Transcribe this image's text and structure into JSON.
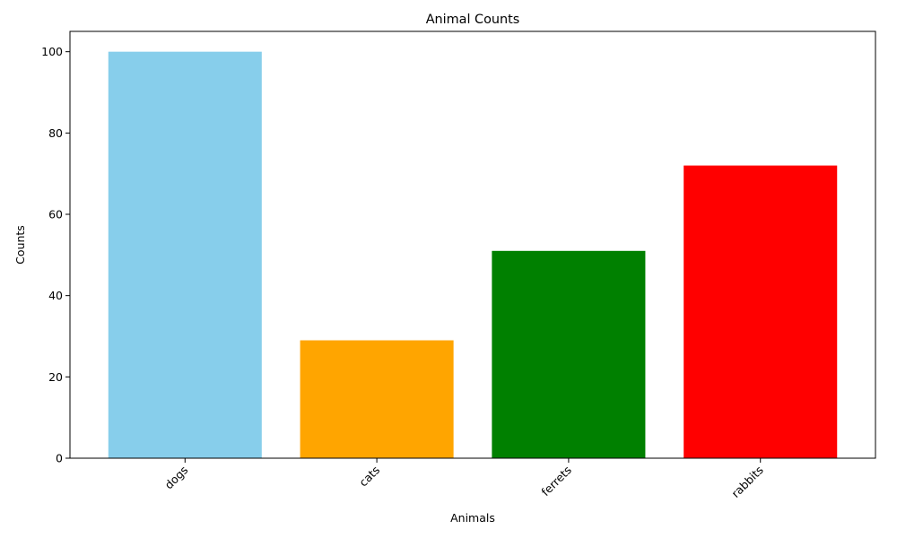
{
  "chart_data": {
    "type": "bar",
    "title": "Animal Counts",
    "xlabel": "Animals",
    "ylabel": "Counts",
    "categories": [
      "dogs",
      "cats",
      "ferrets",
      "rabbits"
    ],
    "values": [
      100,
      29,
      51,
      72
    ],
    "colors": [
      "#87ceeb",
      "#ffa500",
      "#008000",
      "#ff0000"
    ],
    "ylim": [
      0,
      105
    ],
    "yticks": [
      0,
      20,
      40,
      60,
      80,
      100
    ],
    "ytick_labels": [
      "0",
      "20",
      "40",
      "60",
      "80",
      "100"
    ],
    "x_tick_rotation": 45,
    "grid": false,
    "legend": "none"
  }
}
